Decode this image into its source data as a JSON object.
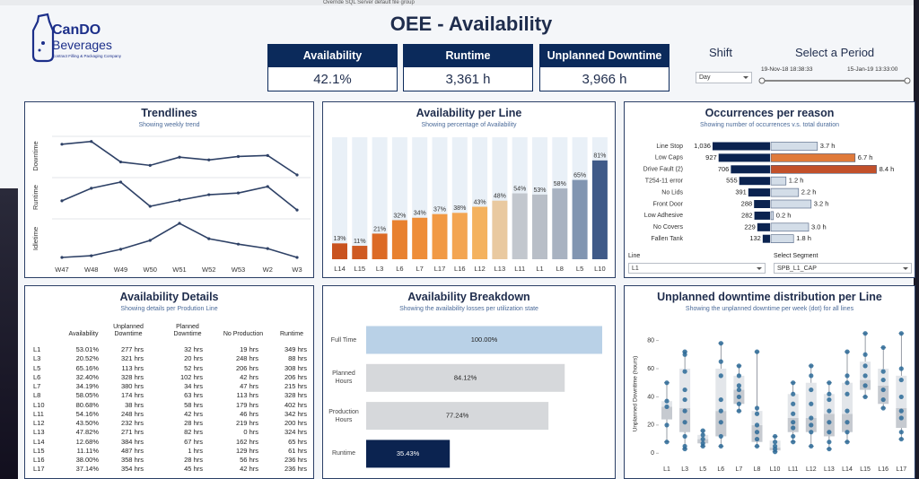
{
  "window": {
    "text": "Override SQL Server default file group"
  },
  "header": {
    "logo_name": "CanDO",
    "logo_sub": "Beverages",
    "logo_tagline": "Contract Filling & Packaging Company",
    "title": "OEE - Availability"
  },
  "kpis": [
    {
      "label": "Availability",
      "value": "42.1%"
    },
    {
      "label": "Runtime",
      "value": "3,361 h"
    },
    {
      "label": "Unplanned Downtime",
      "value": "3,966 h"
    }
  ],
  "filters": {
    "shift_label": "Shift",
    "shift_value": "Day",
    "period_label": "Select a Period",
    "period_start": "19-Nov-18 18:38:33",
    "period_end": "15-Jan-19 13:33:00",
    "line_filter_label": "Line",
    "line_filter_value": "L1",
    "segment_filter_label": "Select Segment",
    "segment_filter_value": "SPB_L1_CAP"
  },
  "chart_data": [
    {
      "type": "line",
      "title": "Trendlines",
      "subtitle": "Showing weekly trend",
      "categories": [
        "W47",
        "W48",
        "W49",
        "W50",
        "W51",
        "W52",
        "W53",
        "W2",
        "W3"
      ],
      "ylim": [
        0,
        100
      ],
      "series": [
        {
          "name": "Downtime",
          "color": "#2e4166",
          "values": [
            90,
            98,
            38,
            28,
            52,
            44,
            54,
            57,
            0
          ]
        },
        {
          "name": "Runtime",
          "color": "#2e4166",
          "values": [
            45,
            82,
            100,
            29,
            47,
            63,
            68,
            87,
            18
          ]
        },
        {
          "name": "Idletime",
          "color": "#2e4166",
          "values": [
            0,
            5,
            24,
            50,
            100,
            55,
            39,
            26,
            0
          ]
        }
      ]
    },
    {
      "type": "bar",
      "title": "Availability per Line",
      "subtitle": "Showing percentage of Availability",
      "categories": [
        "L14",
        "L15",
        "L3",
        "L6",
        "L7",
        "L17",
        "L16",
        "L12",
        "L13",
        "L11",
        "L1",
        "L8",
        "L5",
        "L10"
      ],
      "values": [
        13,
        11,
        21,
        32,
        34,
        37,
        38,
        43,
        48,
        54,
        53,
        58,
        65,
        81
      ],
      "value_labels": [
        "13%",
        "11%",
        "21%",
        "32%",
        "34%",
        "37%",
        "38%",
        "43%",
        "48%",
        "54%",
        "53%",
        "58%",
        "65%",
        "81%"
      ],
      "colors": [
        "#c9531f",
        "#cf5a22",
        "#dc6a25",
        "#e8812f",
        "#ee8d38",
        "#f19944",
        "#f3a552",
        "#f4b25f",
        "#e9c9a0",
        "#c2c7ce",
        "#b8bec7",
        "#a8b2c1",
        "#8195b1",
        "#3f5a88"
      ],
      "background_color": "#e9f0f7",
      "ylim": [
        0,
        100
      ]
    },
    {
      "type": "butterfly",
      "title": "Occurrences per reason",
      "subtitle": "Showing number of occurrences v.s. total duration",
      "categories": [
        "Line Stop",
        "Low Caps",
        "Drive Fault (2)",
        "T254-11 error",
        "No Lids",
        "Front Door",
        "Low Adhesive",
        "No Covers",
        "Fallen Tank"
      ],
      "series": [
        {
          "color": "#0b2350",
          "xlim": [
            0,
            1100
          ],
          "values": [
            1036,
            927,
            706,
            555,
            391,
            288,
            282,
            229,
            132
          ],
          "value_labels": [
            "1,036",
            "927",
            "706",
            "555",
            "391",
            "288",
            "282",
            "229",
            "132"
          ]
        },
        {
          "xlim": [
            0,
            9
          ],
          "values": [
            3.7,
            6.7,
            8.4,
            1.2,
            2.2,
            3.2,
            0.2,
            3.0,
            1.8
          ],
          "value_labels": [
            "3.7 h",
            "6.7 h",
            "8.4 h",
            "1.2 h",
            "2.2 h",
            "3.2 h",
            "0.2 h",
            "3.0 h",
            "1.8 h"
          ],
          "colors": [
            "#d3dde8",
            "#e07a3a",
            "#c2502a",
            "#d3dde8",
            "#d3dde8",
            "#d3dde8",
            "#d3dde8",
            "#d3dde8",
            "#d3dde8"
          ]
        }
      ]
    },
    {
      "type": "hbar",
      "title": "Availability Breakdown",
      "subtitle": "Showing the availability losses per utilization state",
      "categories": [
        "Full Time",
        "Planned Hours",
        "Production Hours",
        "Runtime"
      ],
      "values": [
        100,
        84.12,
        77.24,
        35.43
      ],
      "value_labels": [
        "100.00%",
        "84.12%",
        "77.24%",
        "35.43%"
      ],
      "colors": [
        "#b9d1e7",
        "#d6d8db",
        "#d6d8db",
        "#0b2350"
      ],
      "label_colors": [
        "#222222",
        "#222222",
        "#222222",
        "#ffffff"
      ],
      "xlim": [
        0,
        100
      ]
    },
    {
      "type": "box",
      "title": "Unplanned downtime distribution per Line",
      "subtitle": "Showing the unplanned downtime per week (dot) for all lines",
      "ylabel": "Unplanned Downtime (hours)",
      "categories": [
        "L1",
        "L3",
        "L5",
        "L6",
        "L7",
        "L8",
        "L10",
        "L11",
        "L12",
        "L13",
        "L14",
        "L15",
        "L16",
        "L17"
      ],
      "boxes": [
        {
          "low": 8,
          "q1": 24,
          "median": 33,
          "q3": 37,
          "high": 50,
          "points": [
            50,
            37,
            33,
            20,
            8
          ]
        },
        {
          "low": 3,
          "q1": 15,
          "median": 32,
          "q3": 60,
          "high": 72,
          "points": [
            72,
            70,
            58,
            45,
            38,
            30,
            22,
            12,
            5,
            3
          ]
        },
        {
          "low": 5,
          "q1": 7,
          "median": 10,
          "q3": 13,
          "high": 16,
          "points": [
            16,
            13,
            10,
            7,
            5
          ]
        },
        {
          "low": 5,
          "q1": 12,
          "median": 30,
          "q3": 60,
          "high": 78,
          "points": [
            78,
            65,
            55,
            38,
            30,
            22,
            12,
            5
          ]
        },
        {
          "low": 30,
          "q1": 35,
          "median": 45,
          "q3": 55,
          "high": 62,
          "points": [
            62,
            55,
            48,
            45,
            40,
            35,
            30
          ]
        },
        {
          "low": 5,
          "q1": 8,
          "median": 20,
          "q3": 30,
          "high": 72,
          "points": [
            72,
            32,
            28,
            20,
            15,
            10,
            5
          ]
        },
        {
          "low": 1,
          "q1": 2,
          "median": 4,
          "q3": 9,
          "high": 12,
          "points": [
            12,
            8,
            5,
            3,
            1
          ]
        },
        {
          "low": 8,
          "q1": 15,
          "median": 25,
          "q3": 42,
          "high": 50,
          "points": [
            50,
            42,
            35,
            28,
            22,
            18,
            12,
            8
          ]
        },
        {
          "low": 5,
          "q1": 15,
          "median": 25,
          "q3": 50,
          "high": 62,
          "points": [
            62,
            55,
            45,
            35,
            25,
            20,
            15,
            5
          ]
        },
        {
          "low": 3,
          "q1": 12,
          "median": 28,
          "q3": 42,
          "high": 50,
          "points": [
            50,
            42,
            38,
            30,
            22,
            15,
            8,
            3
          ]
        },
        {
          "low": 8,
          "q1": 15,
          "median": 28,
          "q3": 50,
          "high": 72,
          "points": [
            72,
            55,
            50,
            42,
            30,
            22,
            15,
            8
          ]
        },
        {
          "low": 40,
          "q1": 45,
          "median": 52,
          "q3": 65,
          "high": 85,
          "points": [
            85,
            70,
            62,
            55,
            48,
            40
          ]
        },
        {
          "low": 32,
          "q1": 35,
          "median": 48,
          "q3": 60,
          "high": 75,
          "points": [
            75,
            58,
            52,
            45,
            38,
            32
          ]
        },
        {
          "low": 10,
          "q1": 18,
          "median": 32,
          "q3": 55,
          "high": 85,
          "points": [
            85,
            60,
            52,
            40,
            30,
            25,
            15,
            10
          ]
        }
      ],
      "box_colors": [
        "#c6cad0",
        "#e3e6ea"
      ],
      "point_color": "#2b6a98",
      "whisker_color": "#6b7280",
      "ylim": [
        -3,
        88
      ],
      "yticks": [
        0,
        20,
        40,
        60,
        80
      ]
    }
  ],
  "table": {
    "title": "Availability Details",
    "subtitle": "Showing details per Prodution Line",
    "columns": [
      "Availability",
      "Unplanned Downtime",
      "Planned Downtime",
      "No Production",
      "Runtime"
    ],
    "rows": [
      [
        "L1",
        "53.01%",
        "277 hrs",
        "32 hrs",
        "19 hrs",
        "349 hrs"
      ],
      [
        "L3",
        "20.52%",
        "321 hrs",
        "20 hrs",
        "248 hrs",
        "88 hrs"
      ],
      [
        "L5",
        "65.16%",
        "113 hrs",
        "52 hrs",
        "206 hrs",
        "308 hrs"
      ],
      [
        "L6",
        "32.40%",
        "328 hrs",
        "102 hrs",
        "42 hrs",
        "206 hrs"
      ],
      [
        "L7",
        "34.19%",
        "380 hrs",
        "34 hrs",
        "47 hrs",
        "215 hrs"
      ],
      [
        "L8",
        "58.05%",
        "174 hrs",
        "63 hrs",
        "113 hrs",
        "328 hrs"
      ],
      [
        "L10",
        "80.68%",
        "38 hrs",
        "58 hrs",
        "179 hrs",
        "402 hrs"
      ],
      [
        "L11",
        "54.16%",
        "248 hrs",
        "42 hrs",
        "46 hrs",
        "342 hrs"
      ],
      [
        "L12",
        "43.50%",
        "232 hrs",
        "28 hrs",
        "219 hrs",
        "200 hrs"
      ],
      [
        "L13",
        "47.82%",
        "271 hrs",
        "82 hrs",
        "0 hrs",
        "324 hrs"
      ],
      [
        "L14",
        "12.68%",
        "384 hrs",
        "67 hrs",
        "162 hrs",
        "65 hrs"
      ],
      [
        "L15",
        "11.11%",
        "487 hrs",
        "1 hrs",
        "129 hrs",
        "61 hrs"
      ],
      [
        "L16",
        "38.00%",
        "358 hrs",
        "28 hrs",
        "56 hrs",
        "236 hrs"
      ],
      [
        "L17",
        "37.14%",
        "354 hrs",
        "45 hrs",
        "42 hrs",
        "236 hrs"
      ]
    ]
  }
}
